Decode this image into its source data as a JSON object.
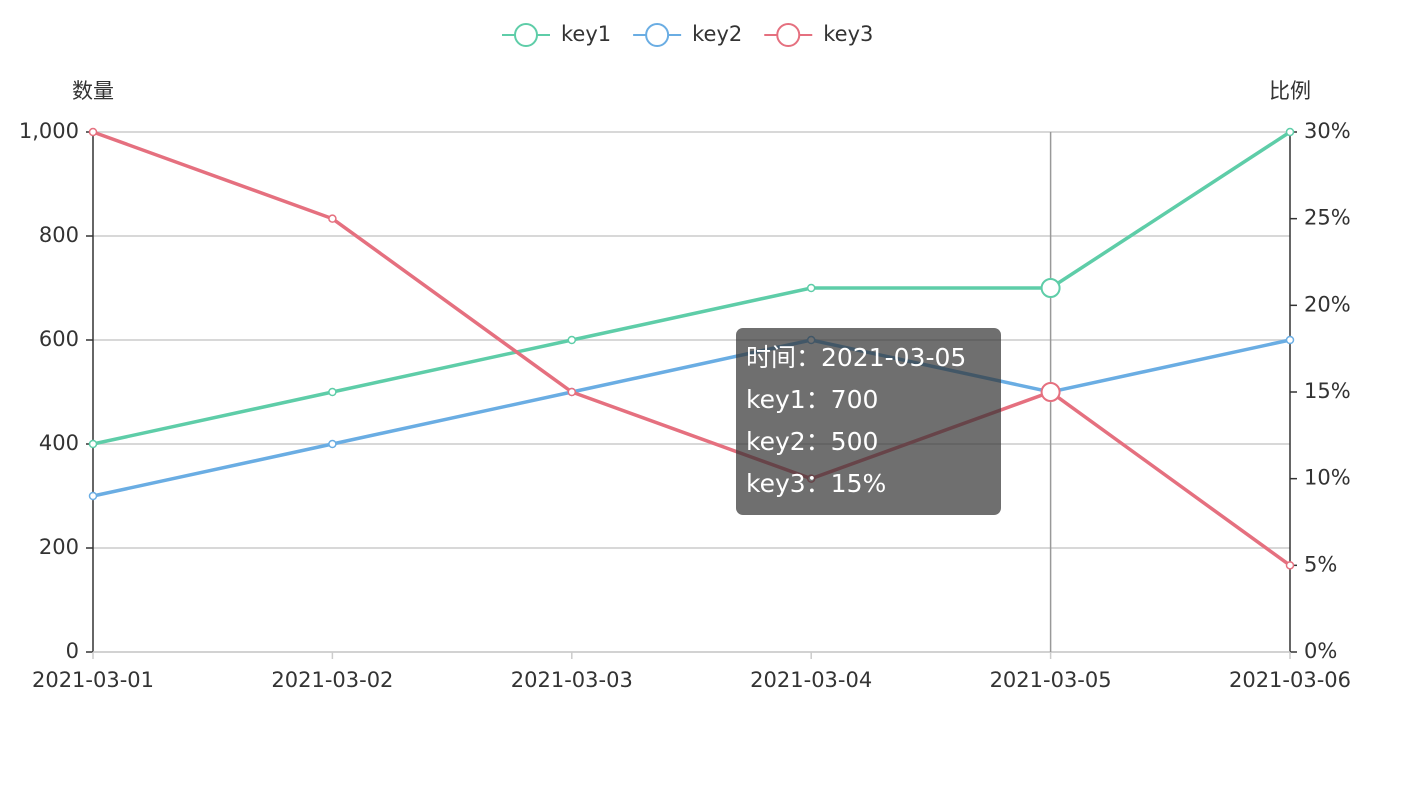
{
  "chart_data": {
    "type": "line",
    "categories": [
      "2021-03-01",
      "2021-03-02",
      "2021-03-03",
      "2021-03-04",
      "2021-03-05",
      "2021-03-06"
    ],
    "y_label": "数量",
    "y2_label": "比例",
    "ylim": [
      0,
      1000
    ],
    "yticks": [
      0,
      200,
      400,
      600,
      800,
      {
        "value": 1000,
        "label": "1,000"
      }
    ],
    "y2lim": [
      0,
      30
    ],
    "y2ticks": [
      {
        "value": 0,
        "label": "0%"
      },
      {
        "value": 5,
        "label": "5%"
      },
      {
        "value": 10,
        "label": "10%"
      },
      {
        "value": 15,
        "label": "15%"
      },
      {
        "value": 20,
        "label": "20%"
      },
      {
        "value": 25,
        "label": "25%"
      },
      {
        "value": 30,
        "label": "30%"
      }
    ],
    "grid": true,
    "legend": "top",
    "series": [
      {
        "name": "key1",
        "color": "#5ecda8",
        "values": [
          400,
          500,
          600,
          700,
          700,
          1000
        ]
      },
      {
        "name": "key2",
        "color": "#6aade3",
        "values": [
          300,
          400,
          500,
          600,
          500,
          600
        ]
      },
      {
        "name": "key3",
        "color": "#e5707f",
        "values": [
          30,
          25,
          15,
          10,
          15,
          5
        ],
        "axis": "y2"
      }
    ],
    "tooltip": {
      "x": "2021-03-05",
      "lines": [
        "时间：2021-03-05",
        "key1：700",
        "key2：500",
        "key3：15%"
      ]
    }
  }
}
